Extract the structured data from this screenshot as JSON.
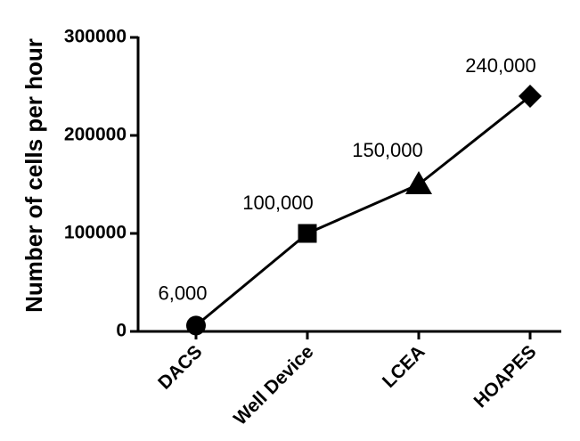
{
  "chart_data": {
    "type": "line",
    "title": "",
    "xlabel": "",
    "ylabel": "Number of cells per hour",
    "ylim": [
      0,
      300000
    ],
    "yticks": [
      0,
      100000,
      200000,
      300000
    ],
    "ytick_labels": [
      "0",
      "100000",
      "200000",
      "300000"
    ],
    "grid": false,
    "categories": [
      "DACS",
      "Well Device",
      "LCEA",
      "HOAPES"
    ],
    "series": [
      {
        "values": [
          6000,
          100000,
          150000,
          240000
        ],
        "markers": [
          "circle",
          "square",
          "triangle",
          "diamond"
        ],
        "data_labels": [
          "6,000",
          "100,000",
          "150,000",
          "240,000"
        ],
        "color": "#000000"
      }
    ]
  }
}
